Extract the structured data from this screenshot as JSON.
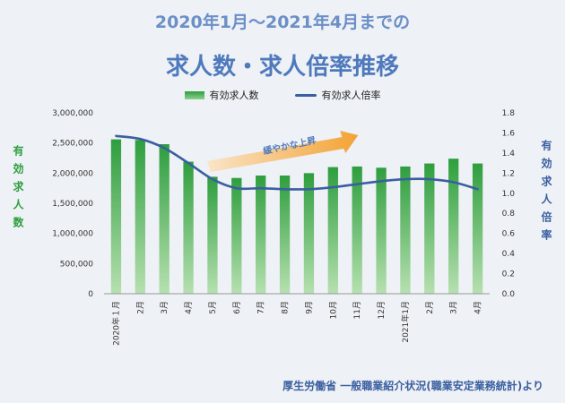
{
  "header": {
    "subtitle": "2020年1月～2021年4月までの",
    "title": "求人数・求人倍率推移"
  },
  "legend": {
    "bars": "有効求人数",
    "line": "有効求人倍率"
  },
  "axis_labels": {
    "left": "有効求人数",
    "right": "有効求人倍率"
  },
  "source": "厚生労働省 一般職業紹介状況(職業安定業務統計)より",
  "colors": {
    "bar_top": "#2e9e3e",
    "bar_bottom": "#b6e0b0",
    "line": "#3a5fa0",
    "arrow_start": "#fbe3c4",
    "arrow_end": "#f39a1e"
  },
  "chart_data": {
    "type": "bar",
    "categories": [
      "2020年１月",
      "2月",
      "3月",
      "4月",
      "5月",
      "6月",
      "7月",
      "8月",
      "9月",
      "10月",
      "11月",
      "12月",
      "2021年1月",
      "2月",
      "3月",
      "4月"
    ],
    "series": [
      {
        "name": "有効求人数",
        "type": "bar",
        "axis": "left",
        "values": [
          2560000,
          2550000,
          2480000,
          2190000,
          1940000,
          1920000,
          1960000,
          1960000,
          2000000,
          2100000,
          2110000,
          2090000,
          2110000,
          2160000,
          2240000,
          2160000
        ]
      },
      {
        "name": "有効求人倍率",
        "type": "line",
        "axis": "right",
        "values": [
          1.57,
          1.54,
          1.45,
          1.3,
          1.14,
          1.05,
          1.05,
          1.04,
          1.04,
          1.06,
          1.09,
          1.12,
          1.14,
          1.14,
          1.11,
          1.04
        ]
      }
    ],
    "y_left": {
      "min": 0,
      "max": 3000000,
      "ticks": [
        "0",
        "500,000",
        "1,000,000",
        "1,500,000",
        "2,000,000",
        "2,500,000",
        "3,000,000"
      ]
    },
    "y_right": {
      "min": 0,
      "max": 1.8,
      "ticks": [
        "0.0",
        "0.2",
        "0.4",
        "0.6",
        "0.8",
        "1.0",
        "1.2",
        "1.4",
        "1.6",
        "1.8"
      ]
    },
    "annotation": "緩やかな上昇",
    "annotation_span": [
      "5月",
      "10月"
    ],
    "legend_position": "top",
    "grid": false
  }
}
